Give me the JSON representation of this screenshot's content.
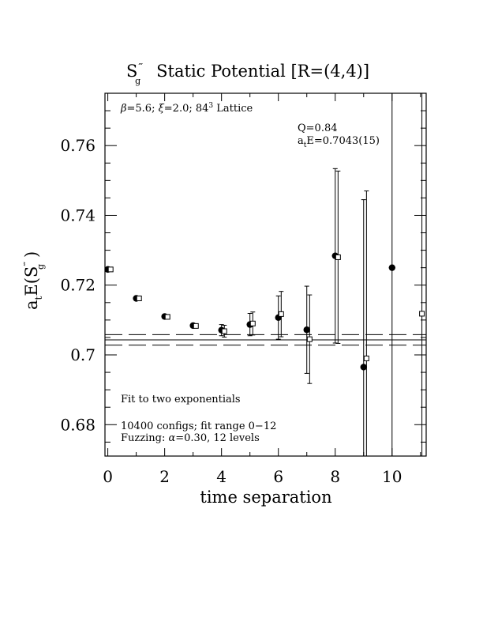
{
  "chart_data": {
    "type": "scatter",
    "title": {
      "main": "S",
      "sup": "‴",
      "sub": "g",
      "rest": "Static Potential [R=(4,4)]"
    },
    "xlabel": "time separation",
    "ylabel": {
      "prefix": "a",
      "prefix_sub": "t",
      "mid": "E(S",
      "sup": "‴",
      "sub": "g",
      "end": ")"
    },
    "xlim": [
      -0.1,
      11.2
    ],
    "ylim": [
      0.671,
      0.775
    ],
    "xticks": [
      0,
      2,
      4,
      6,
      8,
      10
    ],
    "xtick_labels": [
      "0",
      "2",
      "4",
      "6",
      "8",
      "10"
    ],
    "yticks": [
      0.68,
      0.7,
      0.72,
      0.74,
      0.76
    ],
    "ytick_labels": [
      "0.68",
      "0.7",
      "0.72",
      "0.74",
      "0.76"
    ],
    "grid": false,
    "series": [
      {
        "marker": "filled-circle",
        "points": [
          {
            "x": 0,
            "y": 0.7245,
            "err": 0.0005
          },
          {
            "x": 1,
            "y": 0.7162,
            "err": 0.0005
          },
          {
            "x": 2,
            "y": 0.711,
            "err": 0.0006
          },
          {
            "x": 3,
            "y": 0.7084,
            "err": 0.0006
          },
          {
            "x": 4,
            "y": 0.7071,
            "err": 0.0016
          },
          {
            "x": 5,
            "y": 0.7087,
            "err": 0.0032
          },
          {
            "x": 6,
            "y": 0.7107,
            "err": 0.0062
          },
          {
            "x": 7,
            "y": 0.7072,
            "err": 0.0125
          },
          {
            "x": 8,
            "y": 0.7284,
            "err": 0.025
          },
          {
            "x": 9,
            "y": 0.6965,
            "err": 0.048
          },
          {
            "x": 10,
            "y": 0.725,
            "err": 0.075
          }
        ]
      },
      {
        "marker": "open-square",
        "points": [
          {
            "x": 0.1,
            "y": 0.7245,
            "err": 0.0005
          },
          {
            "x": 1.1,
            "y": 0.7162,
            "err": 0.0005
          },
          {
            "x": 2.1,
            "y": 0.7109,
            "err": 0.0006
          },
          {
            "x": 3.1,
            "y": 0.7083,
            "err": 0.0006
          },
          {
            "x": 4.1,
            "y": 0.7068,
            "err": 0.0017
          },
          {
            "x": 5.1,
            "y": 0.709,
            "err": 0.0033
          },
          {
            "x": 6.1,
            "y": 0.7117,
            "err": 0.0065
          },
          {
            "x": 7.1,
            "y": 0.7045,
            "err": 0.0127
          },
          {
            "x": 8.1,
            "y": 0.728,
            "err": 0.0247
          },
          {
            "x": 9.1,
            "y": 0.699,
            "err": 0.048
          },
          {
            "x": 11.05,
            "y": 0.7118,
            "err": 0.079
          }
        ]
      }
    ],
    "fit": {
      "value": 0.7043,
      "band": [
        0.7028,
        0.7058
      ]
    },
    "annotations": {
      "lattice": {
        "beta": "β",
        "b1": "=5.6; ",
        "xi": "ξ",
        "b2": "=2.0; 84",
        "sup": "3",
        "b3": " Lattice"
      },
      "q": "Q=0.84",
      "ate": {
        "a": "a",
        "sub": "t",
        "rest": "E=0.7043(15)"
      },
      "fit_text": "Fit to two exponentials",
      "configs": "10400 configs; fit range 0−12",
      "fuzzing": {
        "pre": "Fuzzing: ",
        "alpha": "α",
        "post": "=0.30, 12 levels"
      }
    }
  }
}
